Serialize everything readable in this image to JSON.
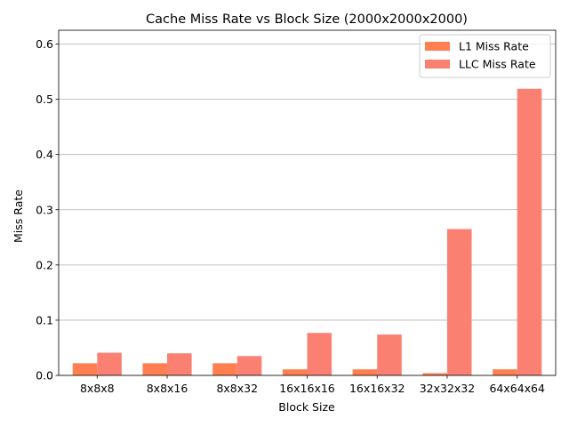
{
  "chart_data": {
    "type": "bar",
    "title": "Cache Miss Rate vs Block Size (2000x2000x2000)",
    "xlabel": "Block Size",
    "ylabel": "Miss Rate",
    "categories": [
      "8x8x8",
      "8x8x16",
      "8x8x32",
      "16x16x16",
      "16x16x32",
      "32x32x32",
      "64x64x64"
    ],
    "series": [
      {
        "name": "L1 Miss Rate",
        "color": "#ff7f50",
        "values": [
          0.022,
          0.022,
          0.022,
          0.011,
          0.011,
          0.004,
          0.011
        ]
      },
      {
        "name": "LLC Miss Rate",
        "color": "#fa8072",
        "values": [
          0.041,
          0.04,
          0.035,
          0.077,
          0.074,
          0.265,
          0.519
        ]
      }
    ],
    "ylim": [
      0,
      0.625
    ],
    "yticks": [
      0.0,
      0.1,
      0.2,
      0.3,
      0.4,
      0.5,
      0.6
    ],
    "ytick_labels": [
      "0.0",
      "0.1",
      "0.2",
      "0.3",
      "0.4",
      "0.5",
      "0.6"
    ],
    "grid": "horizontal",
    "legend_position": "top-right"
  }
}
